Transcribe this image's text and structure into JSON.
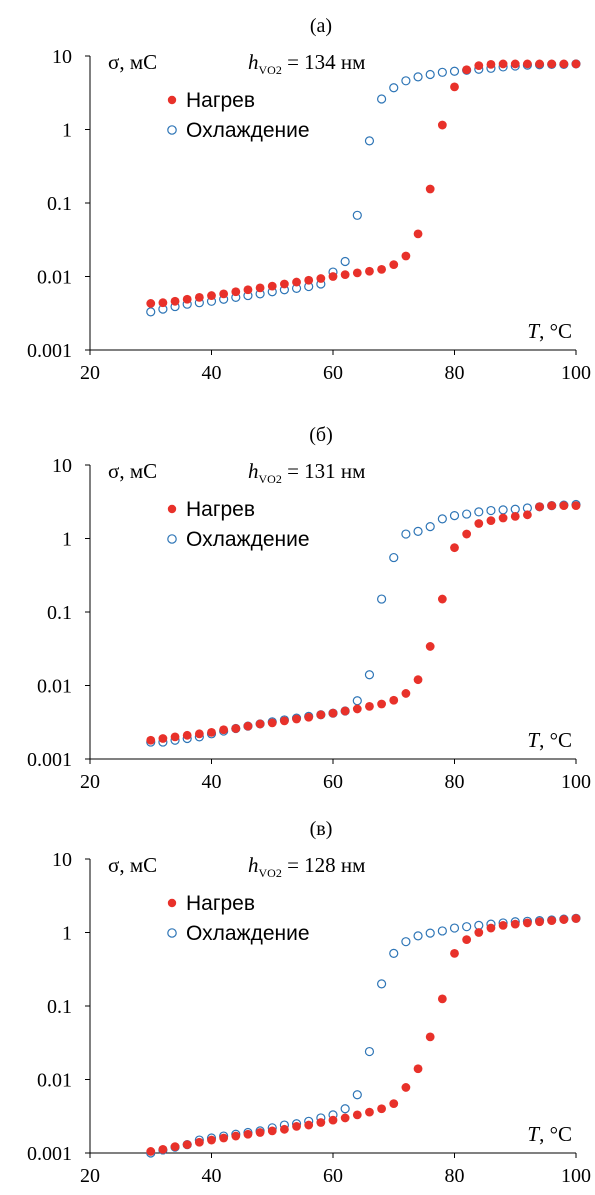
{
  "chart_data": [
    {
      "type": "scatter",
      "panel_label": "(а)",
      "ylabel": "σ, мС",
      "xlabel_var": "T",
      "xlabel_unit": ", °C",
      "annotation": {
        "var": "h",
        "sub": "VO2",
        "value": " = 134 нм"
      },
      "xlim": [
        20,
        100
      ],
      "ylim": [
        0.001,
        10
      ],
      "yscale": "log",
      "x_ticks": [
        "20",
        "40",
        "60",
        "80",
        "100"
      ],
      "y_ticks": [
        "0.001",
        "0.01",
        "0.1",
        "1",
        "10"
      ],
      "legend_position": "top-left",
      "series": [
        {
          "name": "Нагрев",
          "marker": "filled-circle",
          "color": "#e8312a",
          "x": [
            30,
            32,
            34,
            36,
            38,
            40,
            42,
            44,
            46,
            48,
            50,
            52,
            54,
            56,
            58,
            60,
            62,
            64,
            66,
            68,
            70,
            72,
            74,
            76,
            78,
            80,
            82,
            84,
            86,
            88,
            90,
            92,
            94,
            96,
            98,
            100
          ],
          "y": [
            0.0043,
            0.0044,
            0.0046,
            0.0049,
            0.0052,
            0.0055,
            0.0058,
            0.0062,
            0.0066,
            0.007,
            0.0074,
            0.0079,
            0.0084,
            0.0089,
            0.0094,
            0.01,
            0.0106,
            0.0112,
            0.0118,
            0.0125,
            0.0145,
            0.019,
            0.038,
            0.155,
            1.15,
            3.8,
            6.5,
            7.4,
            7.7,
            7.8,
            7.8,
            7.8,
            7.8,
            7.8,
            7.8,
            7.8
          ]
        },
        {
          "name": "Охлаждение",
          "marker": "open-circle",
          "color": "#2e75b6",
          "x": [
            30,
            32,
            34,
            36,
            38,
            40,
            42,
            44,
            46,
            48,
            50,
            52,
            54,
            56,
            58,
            60,
            62,
            64,
            66,
            68,
            70,
            72,
            74,
            76,
            78,
            80,
            82,
            84,
            86,
            88,
            90,
            92,
            94,
            96,
            98,
            100
          ],
          "y": [
            0.0033,
            0.0036,
            0.0039,
            0.0042,
            0.0044,
            0.0046,
            0.0049,
            0.0052,
            0.0055,
            0.0058,
            0.0062,
            0.0066,
            0.0069,
            0.0073,
            0.0079,
            0.0115,
            0.016,
            0.068,
            0.7,
            2.6,
            3.7,
            4.6,
            5.2,
            5.6,
            6.0,
            6.2,
            6.4,
            6.6,
            6.8,
            7.1,
            7.3,
            7.5,
            7.6,
            7.7,
            7.7,
            7.8
          ]
        }
      ]
    },
    {
      "type": "scatter",
      "panel_label": "(б)",
      "ylabel": "σ, мС",
      "xlabel_var": "T",
      "xlabel_unit": ", °C",
      "annotation": {
        "var": "h",
        "sub": "VO2",
        "value": " = 131 нм"
      },
      "xlim": [
        20,
        100
      ],
      "ylim": [
        0.001,
        10
      ],
      "yscale": "log",
      "x_ticks": [
        "20",
        "40",
        "60",
        "80",
        "100"
      ],
      "y_ticks": [
        "0.001",
        "0.01",
        "0.1",
        "1",
        "10"
      ],
      "legend_position": "top-left",
      "series": [
        {
          "name": "Нагрев",
          "marker": "filled-circle",
          "color": "#e8312a",
          "x": [
            30,
            32,
            34,
            36,
            38,
            40,
            42,
            44,
            46,
            48,
            50,
            52,
            54,
            56,
            58,
            60,
            62,
            64,
            66,
            68,
            70,
            72,
            74,
            76,
            78,
            80,
            82,
            84,
            86,
            88,
            90,
            92,
            94,
            96,
            98,
            100
          ],
          "y": [
            0.0018,
            0.0019,
            0.002,
            0.0021,
            0.0022,
            0.0023,
            0.0025,
            0.0026,
            0.0028,
            0.003,
            0.0031,
            0.0033,
            0.0035,
            0.0037,
            0.004,
            0.0042,
            0.0045,
            0.0048,
            0.0052,
            0.0056,
            0.0063,
            0.0078,
            0.012,
            0.034,
            0.15,
            0.75,
            1.15,
            1.6,
            1.75,
            1.9,
            2.0,
            2.1,
            2.7,
            2.8,
            2.8,
            2.8
          ]
        },
        {
          "name": "Охлаждение",
          "marker": "open-circle",
          "color": "#2e75b6",
          "x": [
            30,
            32,
            34,
            36,
            38,
            40,
            42,
            44,
            46,
            48,
            50,
            52,
            54,
            56,
            58,
            60,
            62,
            64,
            66,
            68,
            70,
            72,
            74,
            76,
            78,
            80,
            82,
            84,
            86,
            88,
            90,
            92,
            94,
            96,
            98,
            100
          ],
          "y": [
            0.0017,
            0.0017,
            0.0018,
            0.0019,
            0.002,
            0.0022,
            0.0024,
            0.0026,
            0.0028,
            0.003,
            0.0032,
            0.0034,
            0.0036,
            0.0038,
            0.004,
            0.0042,
            0.0045,
            0.0062,
            0.014,
            0.15,
            0.55,
            1.15,
            1.25,
            1.45,
            1.85,
            2.05,
            2.15,
            2.3,
            2.4,
            2.45,
            2.5,
            2.6,
            2.7,
            2.8,
            2.85,
            2.9
          ]
        }
      ]
    },
    {
      "type": "scatter",
      "panel_label": "(в)",
      "ylabel": "σ, мС",
      "xlabel_var": "T",
      "xlabel_unit": ", °C",
      "annotation": {
        "var": "h",
        "sub": "VO2",
        "value": " = 128 нм"
      },
      "xlim": [
        20,
        100
      ],
      "ylim": [
        0.001,
        10
      ],
      "yscale": "log",
      "x_ticks": [
        "20",
        "40",
        "60",
        "80",
        "100"
      ],
      "y_ticks": [
        "0.001",
        "0.01",
        "0.1",
        "1",
        "10"
      ],
      "legend_position": "top-left",
      "series": [
        {
          "name": "Нагрев",
          "marker": "filled-circle",
          "color": "#e8312a",
          "x": [
            30,
            32,
            34,
            36,
            38,
            40,
            42,
            44,
            46,
            48,
            50,
            52,
            54,
            56,
            58,
            60,
            62,
            64,
            66,
            68,
            70,
            72,
            74,
            76,
            78,
            80,
            82,
            84,
            86,
            88,
            90,
            92,
            94,
            96,
            98,
            100
          ],
          "y": [
            0.00105,
            0.00112,
            0.00122,
            0.0013,
            0.0014,
            0.0015,
            0.0016,
            0.0017,
            0.0018,
            0.0019,
            0.002,
            0.0021,
            0.0023,
            0.0024,
            0.0026,
            0.0028,
            0.003,
            0.0033,
            0.0036,
            0.004,
            0.0047,
            0.0078,
            0.014,
            0.038,
            0.125,
            0.52,
            0.8,
            1.0,
            1.15,
            1.25,
            1.3,
            1.35,
            1.4,
            1.45,
            1.5,
            1.55
          ]
        },
        {
          "name": "Охлаждение",
          "marker": "open-circle",
          "color": "#2e75b6",
          "x": [
            30,
            32,
            34,
            36,
            38,
            40,
            42,
            44,
            46,
            48,
            50,
            52,
            54,
            56,
            58,
            60,
            62,
            64,
            66,
            68,
            70,
            72,
            74,
            76,
            78,
            80,
            82,
            84,
            86,
            88,
            90,
            92,
            94,
            96,
            98,
            100
          ],
          "y": [
            0.001,
            0.0011,
            0.0012,
            0.0013,
            0.0015,
            0.0016,
            0.0017,
            0.0018,
            0.0019,
            0.002,
            0.0022,
            0.0024,
            0.0025,
            0.0027,
            0.003,
            0.0033,
            0.004,
            0.0062,
            0.024,
            0.2,
            0.52,
            0.75,
            0.9,
            0.98,
            1.05,
            1.15,
            1.2,
            1.25,
            1.3,
            1.35,
            1.4,
            1.42,
            1.45,
            1.48,
            1.52,
            1.56
          ]
        }
      ]
    }
  ]
}
